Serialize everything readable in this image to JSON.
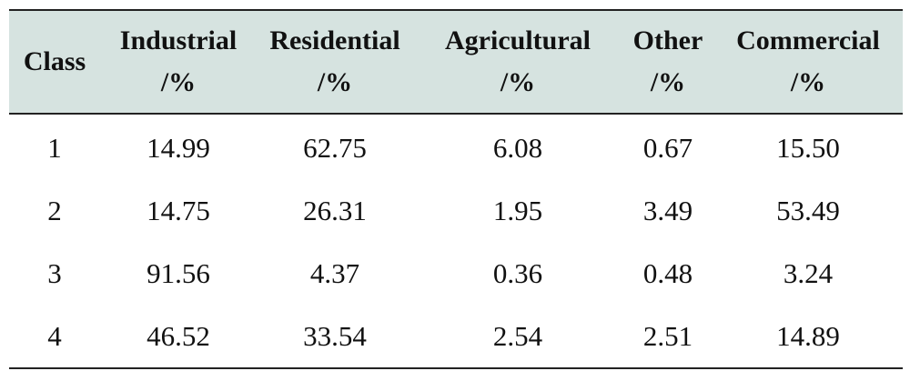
{
  "table": {
    "headers": [
      {
        "line1": "Class",
        "line2": ""
      },
      {
        "line1": "Industrial",
        "line2": "/%"
      },
      {
        "line1": "Residential",
        "line2": "/%"
      },
      {
        "line1": "Agricultural",
        "line2": "/%"
      },
      {
        "line1": "Other",
        "line2": "/%"
      },
      {
        "line1": "Commercial",
        "line2": "/%"
      }
    ],
    "rows": [
      [
        "1",
        "14.99",
        "62.75",
        "6.08",
        "0.67",
        "15.50"
      ],
      [
        "2",
        "14.75",
        "26.31",
        "1.95",
        "3.49",
        "53.49"
      ],
      [
        "3",
        "91.56",
        "4.37",
        "0.36",
        "0.48",
        "3.24"
      ],
      [
        "4",
        "46.52",
        "33.54",
        "2.54",
        "2.51",
        "14.89"
      ]
    ]
  },
  "colors": {
    "header_background": "#d6e3e0",
    "rule": "#222222"
  }
}
